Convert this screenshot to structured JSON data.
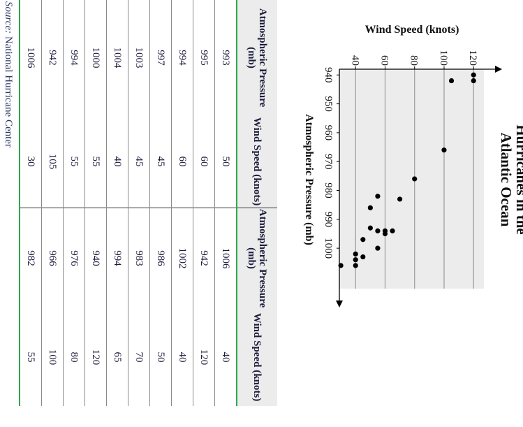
{
  "chart_data": {
    "type": "scatter",
    "title_lines": [
      "Hurricanes in the",
      "Atlantic Ocean"
    ],
    "xlabel": "Atmospheric Pressure (mb)",
    "ylabel": "Wind Speed (knots)",
    "xlim": [
      938,
      1014
    ],
    "ylim": [
      29,
      127
    ],
    "x_ticks": [
      940,
      950,
      960,
      970,
      980,
      990,
      1000
    ],
    "y_ticks": [
      40,
      60,
      80,
      100,
      120
    ],
    "grid": "horizontal",
    "background": "#ececec",
    "point_color": "#000000",
    "points": [
      {
        "x": 993,
        "y": 50
      },
      {
        "x": 995,
        "y": 60
      },
      {
        "x": 994,
        "y": 60
      },
      {
        "x": 997,
        "y": 45
      },
      {
        "x": 1003,
        "y": 45
      },
      {
        "x": 1004,
        "y": 40
      },
      {
        "x": 1000,
        "y": 55
      },
      {
        "x": 994,
        "y": 55
      },
      {
        "x": 942,
        "y": 105
      },
      {
        "x": 1006,
        "y": 30
      },
      {
        "x": 1006,
        "y": 40
      },
      {
        "x": 942,
        "y": 120
      },
      {
        "x": 1002,
        "y": 40
      },
      {
        "x": 986,
        "y": 50
      },
      {
        "x": 983,
        "y": 70
      },
      {
        "x": 994,
        "y": 65
      },
      {
        "x": 940,
        "y": 120
      },
      {
        "x": 976,
        "y": 80
      },
      {
        "x": 966,
        "y": 100
      },
      {
        "x": 982,
        "y": 55
      }
    ]
  },
  "table": {
    "headers": [
      "Atmospheric Pressure (mb)",
      "Wind Speed (knots)",
      "Atmospheric Pressure (mb)",
      "Wind Speed (knots)"
    ],
    "rows": [
      [
        "993",
        "50",
        "1006",
        "40"
      ],
      [
        "995",
        "60",
        "942",
        "120"
      ],
      [
        "994",
        "60",
        "1002",
        "40"
      ],
      [
        "997",
        "45",
        "986",
        "50"
      ],
      [
        "1003",
        "45",
        "983",
        "70"
      ],
      [
        "1004",
        "40",
        "994",
        "65"
      ],
      [
        "1000",
        "55",
        "940",
        "120"
      ],
      [
        "994",
        "55",
        "976",
        "80"
      ],
      [
        "942",
        "105",
        "966",
        "100"
      ],
      [
        "1006",
        "30",
        "982",
        "55"
      ]
    ],
    "accent_color": "#2ea84c",
    "header_bg": "#ececec"
  },
  "source": {
    "label": "Source:",
    "text": " National Hurricane Center"
  }
}
